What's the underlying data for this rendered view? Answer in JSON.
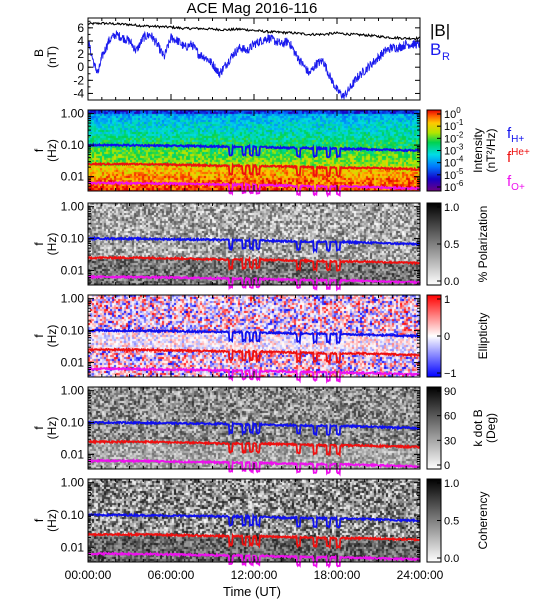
{
  "title": "ACE Mag 2016-116",
  "xlabel": "Time (UT)",
  "x_ticks": [
    "00:00:00",
    "06:00:00",
    "12:00:00",
    "18:00:00",
    "24:00:00"
  ],
  "x_range_hours": [
    0,
    24
  ],
  "colors": {
    "babs": "#000000",
    "br": "#1a1aee",
    "fH": "#1010ee",
    "fHe": "#ee1010",
    "fO": "#ee10ee",
    "frame": "#000000"
  },
  "chart_data": [
    {
      "type": "line",
      "panel": "field",
      "ylabel": "B",
      "yunit": "(nT)",
      "ylim": [
        -5,
        7.5
      ],
      "yticks": [
        "-4",
        "-2",
        "0",
        "2",
        "4",
        "6"
      ],
      "ytick_values": [
        -4,
        -2,
        0,
        2,
        4,
        6
      ],
      "legend": [
        "|B|",
        "B",
        "R"
      ],
      "legend_placement": "right",
      "series": [
        {
          "name": "|B|",
          "key": "babs",
          "x": [
            0,
            1,
            2,
            3,
            4,
            5,
            6,
            7,
            8,
            9,
            10,
            11,
            12,
            13,
            14,
            15,
            16,
            17,
            18,
            19,
            20,
            21,
            22,
            23,
            24
          ],
          "values": [
            6.6,
            6.7,
            6.6,
            6.5,
            6.3,
            6.2,
            6.1,
            5.9,
            5.9,
            5.8,
            5.7,
            5.8,
            5.6,
            5.4,
            5.3,
            5.2,
            5.0,
            5.0,
            5.2,
            5.0,
            4.9,
            4.7,
            4.5,
            4.4,
            4.4
          ]
        },
        {
          "name": "B_R",
          "key": "br",
          "x": [
            0,
            0.25,
            0.5,
            0.75,
            1,
            1.5,
            2,
            2.5,
            3,
            3.5,
            4,
            4.5,
            5,
            5.5,
            6,
            6.5,
            7,
            7.5,
            8,
            8.5,
            9,
            9.5,
            10,
            10.5,
            11,
            11.5,
            12,
            12.5,
            13,
            13.5,
            14,
            14.5,
            15,
            15.5,
            16,
            16.5,
            17,
            17.5,
            18,
            18.5,
            19,
            19.5,
            20,
            20.5,
            21,
            21.5,
            22,
            22.5,
            23,
            23.5,
            24
          ],
          "values": [
            4.0,
            2.0,
            0.0,
            -0.8,
            1.5,
            4.0,
            5.0,
            4.5,
            4.0,
            2.5,
            4.5,
            5.0,
            3.5,
            1.5,
            4.5,
            4.0,
            3.0,
            3.5,
            2.0,
            1.5,
            0.5,
            -1.0,
            0.5,
            2.0,
            3.0,
            2.5,
            3.5,
            4.0,
            4.5,
            4.0,
            3.5,
            4.0,
            2.0,
            0.5,
            -1.0,
            0.5,
            1.0,
            -1.5,
            -3.5,
            -4.5,
            -3.0,
            -1.5,
            -0.5,
            0.5,
            1.5,
            2.5,
            3.0,
            3.0,
            3.5,
            3.5,
            3.5
          ]
        }
      ]
    },
    {
      "type": "heatmap",
      "panel": "intensity",
      "ylabel": "f",
      "yunit": "(Hz)",
      "colorbar_label": "Intensity",
      "colorbar_unit": "(nT²/Hz)",
      "colorbar_ticks": [
        "10",
        "10",
        "10",
        "10",
        "10",
        "10",
        "10"
      ],
      "colorbar_exponents": [
        "0",
        "-1",
        "-2",
        "-3",
        "-4",
        "-5",
        "-6"
      ],
      "colormap": "rainbow",
      "legend": [
        {
          "symbol": "f",
          "sub": "H+",
          "key": "fH"
        },
        {
          "symbol": "f",
          "sup": "He+",
          "key": "fHe"
        },
        {
          "symbol": "f",
          "sub": "O+",
          "key": "fO"
        }
      ]
    },
    {
      "type": "heatmap",
      "panel": "polarization",
      "ylabel": "f",
      "yunit": "(Hz)",
      "colorbar_label": "% Polarization",
      "colorbar_ticks": [
        "1.0",
        "0.5",
        "0.0"
      ],
      "colormap": "gray"
    },
    {
      "type": "heatmap",
      "panel": "ellipticity",
      "ylabel": "f",
      "yunit": "(Hz)",
      "colorbar_label": "Ellipticity",
      "colorbar_ticks": [
        "1",
        "0",
        "−1"
      ],
      "colormap": "bwr"
    },
    {
      "type": "heatmap",
      "panel": "kdotb",
      "ylabel": "f",
      "yunit": "(Hz)",
      "colorbar_label": "k dot B",
      "colorbar_unit": "(Deg)",
      "colorbar_ticks": [
        "90",
        "60",
        "30",
        "0"
      ],
      "colormap": "gray"
    },
    {
      "type": "heatmap",
      "panel": "coherency",
      "ylabel": "f",
      "yunit": "(Hz)",
      "colorbar_label": "Coherency",
      "colorbar_ticks": [
        "1.0",
        "0.5",
        "0.0"
      ],
      "colormap": "gray"
    }
  ],
  "freq_axis": {
    "scale": "log",
    "ylim": [
      0.0035,
      1.3
    ],
    "ticks": [
      "1.00",
      "0.10",
      "0.01"
    ],
    "tick_values": [
      1.0,
      0.1,
      0.01
    ]
  },
  "gyro_lines": {
    "x": [
      0,
      2,
      4,
      6,
      8,
      10,
      12,
      14,
      16,
      18,
      20,
      22,
      24
    ],
    "fH": [
      0.1,
      0.1,
      0.098,
      0.095,
      0.093,
      0.09,
      0.088,
      0.083,
      0.08,
      0.078,
      0.075,
      0.07,
      0.067
    ],
    "fHe": [
      0.025,
      0.025,
      0.025,
      0.024,
      0.023,
      0.022,
      0.022,
      0.021,
      0.02,
      0.019,
      0.019,
      0.018,
      0.017
    ],
    "fO": [
      0.0063,
      0.0063,
      0.0062,
      0.006,
      0.0058,
      0.0056,
      0.0055,
      0.0052,
      0.005,
      0.0049,
      0.0047,
      0.0044,
      0.0042
    ],
    "dips_hours": [
      10.3,
      11.3,
      11.8,
      12.3,
      15.2,
      16.4,
      17.4,
      18.1
    ]
  }
}
